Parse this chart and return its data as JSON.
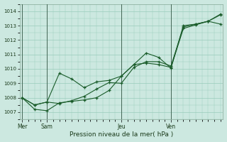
{
  "background_color": "#cce8e0",
  "plot_bg_color": "#cce8e0",
  "grid_color": "#99ccbb",
  "line_color": "#1a5c2a",
  "xlabel": "Pression niveau de la mer( hPa )",
  "ylim": [
    1006.5,
    1014.5
  ],
  "yticks": [
    1007,
    1008,
    1009,
    1010,
    1011,
    1012,
    1013,
    1014
  ],
  "xlim_min": -0.2,
  "xlim_max": 16.2,
  "day_positions": [
    0.0,
    2.0,
    8.0,
    12.0
  ],
  "day_labels": [
    "Mer",
    "Sam",
    "Jeu",
    "Ven"
  ],
  "series1": [
    1008.0,
    1007.5,
    1007.7,
    1009.7,
    1009.3,
    1008.7,
    1009.1,
    1009.2,
    1009.5,
    1010.3,
    1010.4,
    1010.3,
    1010.1,
    1012.8,
    1013.05,
    1013.3,
    1013.75
  ],
  "series2": [
    1008.0,
    1007.5,
    1007.7,
    1007.6,
    1007.8,
    1008.1,
    1008.6,
    1009.05,
    1009.0,
    1010.1,
    1010.5,
    1010.5,
    1010.2,
    1012.9,
    1013.1,
    1013.3,
    1013.8
  ],
  "series3": [
    1008.0,
    1007.2,
    1007.1,
    1007.65,
    1007.75,
    1007.85,
    1008.0,
    1008.5,
    1009.5,
    1010.3,
    1011.1,
    1010.8,
    1010.05,
    1013.0,
    1013.1,
    1013.3,
    1013.1
  ],
  "n_points": 17
}
